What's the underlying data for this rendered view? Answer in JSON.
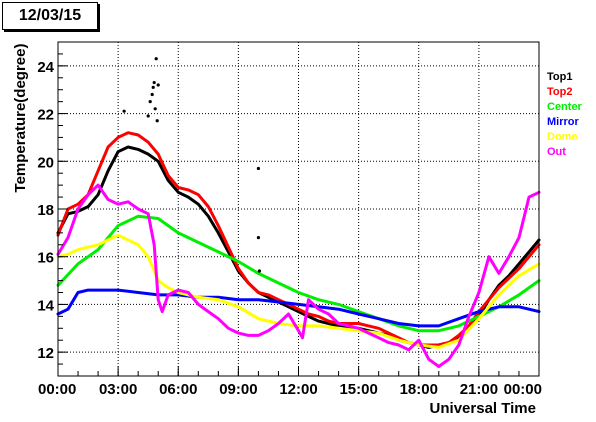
{
  "title": "12/03/15",
  "chart_data": {
    "type": "line",
    "title": "12/03/15",
    "xlabel": "Universal Time",
    "ylabel": "Temperature(degree)",
    "xlim": [
      0,
      24
    ],
    "ylim": [
      11,
      25
    ],
    "grid": true,
    "legend_position": "right",
    "x_tick_labels": [
      "00:00",
      "03:00",
      "06:00",
      "09:00",
      "12:00",
      "15:00",
      "18:00",
      "21:00",
      "00:00"
    ],
    "y_tick_labels": [
      "12",
      "14",
      "16",
      "18",
      "20",
      "22",
      "24"
    ],
    "series": [
      {
        "name": "Top1",
        "color": "#000000",
        "x": [
          0,
          0.5,
          1,
          1.5,
          2,
          2.5,
          3,
          3.5,
          4,
          4.5,
          5,
          5.5,
          6,
          6.5,
          7,
          7.5,
          8,
          8.5,
          9,
          9.5,
          10,
          10.5,
          11,
          11.5,
          12,
          12.5,
          13,
          13.5,
          14,
          14.5,
          15,
          15.5,
          16,
          16.5,
          17,
          17.5,
          18,
          18.5,
          19,
          19.5,
          20,
          20.5,
          21,
          21.5,
          22,
          22.5,
          23,
          23.5,
          24
        ],
        "y": [
          17.0,
          17.8,
          17.9,
          18.1,
          18.6,
          19.6,
          20.4,
          20.6,
          20.5,
          20.3,
          20.0,
          19.2,
          18.7,
          18.5,
          18.2,
          17.7,
          17.0,
          16.2,
          15.4,
          14.9,
          14.5,
          14.3,
          14.1,
          13.9,
          13.7,
          13.5,
          13.3,
          13.2,
          13.1,
          13.0,
          13.0,
          12.9,
          12.8,
          12.7,
          12.5,
          12.4,
          12.3,
          12.2,
          12.3,
          12.4,
          12.6,
          13.0,
          13.5,
          14.2,
          14.8,
          15.2,
          15.7,
          16.2,
          16.7
        ]
      },
      {
        "name": "Top2",
        "color": "#ff0000",
        "x": [
          0,
          0.5,
          1,
          1.5,
          2,
          2.5,
          3,
          3.5,
          4,
          4.5,
          5,
          5.5,
          6,
          6.5,
          7,
          7.5,
          8,
          8.5,
          9,
          9.5,
          10,
          10.5,
          11,
          11.5,
          12,
          12.5,
          13,
          13.5,
          14,
          14.5,
          15,
          15.5,
          16,
          16.5,
          17,
          17.5,
          18,
          18.5,
          19,
          19.5,
          20,
          20.5,
          21,
          21.5,
          22,
          22.5,
          23,
          23.5,
          24
        ],
        "y": [
          16.9,
          18.0,
          18.2,
          18.6,
          19.6,
          20.6,
          21.0,
          21.2,
          21.1,
          20.8,
          20.3,
          19.4,
          18.9,
          18.8,
          18.6,
          18.1,
          17.3,
          16.4,
          15.5,
          14.9,
          14.5,
          14.4,
          14.2,
          14.0,
          13.8,
          13.6,
          13.5,
          13.3,
          13.2,
          13.2,
          13.2,
          13.1,
          13.0,
          12.8,
          12.6,
          12.4,
          12.3,
          12.3,
          12.3,
          12.4,
          12.7,
          13.1,
          13.7,
          14.2,
          14.7,
          15.1,
          15.5,
          16.0,
          16.5
        ]
      },
      {
        "name": "Center",
        "color": "#00ee00",
        "x": [
          0,
          1,
          2,
          3,
          4,
          5,
          6,
          7,
          8,
          9,
          10,
          11,
          12,
          13,
          14,
          15,
          16,
          17,
          18,
          19,
          20,
          21,
          22,
          23,
          24
        ],
        "y": [
          14.8,
          15.7,
          16.3,
          17.3,
          17.7,
          17.6,
          17.0,
          16.6,
          16.2,
          15.8,
          15.3,
          14.9,
          14.5,
          14.2,
          14.0,
          13.7,
          13.4,
          13.1,
          12.9,
          12.9,
          13.1,
          13.5,
          13.9,
          14.4,
          15.0
        ]
      },
      {
        "name": "Mirror",
        "color": "#0000ff",
        "x": [
          0,
          0.5,
          1,
          1.5,
          2,
          3,
          4,
          5,
          6,
          7,
          8,
          9,
          10,
          11,
          12,
          13,
          14,
          15,
          16,
          17,
          18,
          19,
          20,
          21,
          22,
          23,
          24
        ],
        "y": [
          13.6,
          13.8,
          14.5,
          14.6,
          14.6,
          14.6,
          14.5,
          14.4,
          14.4,
          14.3,
          14.3,
          14.2,
          14.2,
          14.1,
          14.0,
          13.9,
          13.8,
          13.6,
          13.4,
          13.2,
          13.1,
          13.1,
          13.4,
          13.7,
          13.9,
          13.9,
          13.7
        ]
      },
      {
        "name": "Dome",
        "color": "#ffff00",
        "x": [
          0,
          0.5,
          1,
          2,
          2.5,
          3,
          3.5,
          4,
          4.5,
          5,
          5.5,
          6,
          7,
          8,
          9,
          10,
          11,
          12,
          13,
          14,
          15,
          16,
          17,
          18,
          19,
          20,
          21,
          22,
          23,
          24
        ],
        "y": [
          16.0,
          16.1,
          16.3,
          16.5,
          16.7,
          16.9,
          16.7,
          16.5,
          16.0,
          15.0,
          14.7,
          14.5,
          14.3,
          14.2,
          13.9,
          13.4,
          13.2,
          13.1,
          13.1,
          13.0,
          12.9,
          12.8,
          12.5,
          12.3,
          12.2,
          12.5,
          13.4,
          14.4,
          15.2,
          15.7
        ]
      },
      {
        "name": "Out",
        "color": "#ff00ff",
        "x": [
          0,
          0.5,
          1,
          1.5,
          2,
          2.5,
          3,
          3.5,
          4,
          4.5,
          4.8,
          5,
          5.2,
          5.5,
          6,
          6.5,
          7,
          7.5,
          8,
          8.5,
          9,
          9.5,
          10,
          10.5,
          11,
          11.5,
          12,
          12.2,
          12.5,
          13,
          13.5,
          14,
          14.5,
          15,
          15.5,
          16,
          16.5,
          17,
          17.5,
          18,
          18.5,
          19,
          19.5,
          20,
          20.5,
          21,
          21.5,
          22,
          22.5,
          23,
          23.5,
          24
        ],
        "y": [
          16.1,
          16.8,
          18.0,
          18.6,
          19.0,
          18.4,
          18.2,
          18.3,
          18.0,
          17.8,
          16.5,
          14.2,
          13.7,
          14.4,
          14.6,
          14.5,
          14.0,
          13.7,
          13.4,
          13.0,
          12.8,
          12.7,
          12.7,
          12.9,
          13.2,
          13.6,
          12.9,
          12.6,
          14.2,
          13.8,
          13.6,
          13.2,
          13.1,
          13.0,
          12.8,
          12.6,
          12.4,
          12.3,
          12.1,
          12.5,
          11.7,
          11.4,
          11.7,
          12.3,
          13.5,
          14.5,
          16.0,
          15.3,
          16.0,
          16.8,
          18.5,
          18.7
        ]
      }
    ],
    "outlier_points_top1": {
      "x": [
        3.3,
        4.5,
        4.6,
        4.7,
        4.75,
        4.8,
        4.85,
        4.9,
        4.95,
        5.0,
        10.0,
        10.0,
        10.05
      ],
      "y": [
        22.1,
        21.9,
        22.5,
        22.8,
        23.1,
        23.3,
        22.2,
        24.3,
        21.7,
        23.2,
        19.7,
        16.8,
        15.4
      ]
    }
  }
}
